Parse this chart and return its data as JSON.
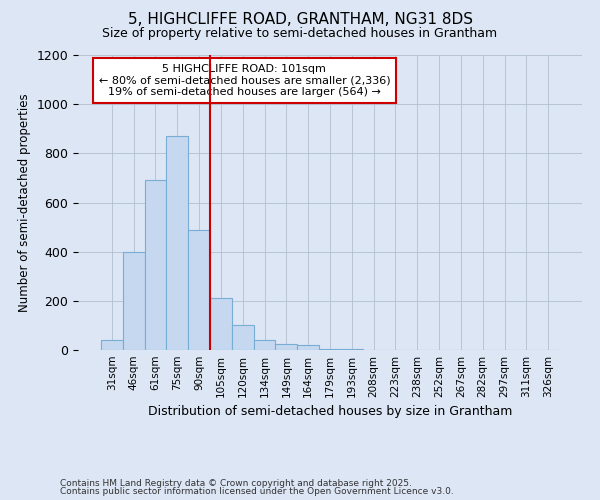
{
  "title1": "5, HIGHCLIFFE ROAD, GRANTHAM, NG31 8DS",
  "title2": "Size of property relative to semi-detached houses in Grantham",
  "xlabel": "Distribution of semi-detached houses by size in Grantham",
  "ylabel": "Number of semi-detached properties",
  "categories": [
    "31sqm",
    "46sqm",
    "61sqm",
    "75sqm",
    "90sqm",
    "105sqm",
    "120sqm",
    "134sqm",
    "149sqm",
    "164sqm",
    "179sqm",
    "193sqm",
    "208sqm",
    "223sqm",
    "238sqm",
    "252sqm",
    "267sqm",
    "282sqm",
    "297sqm",
    "311sqm",
    "326sqm"
  ],
  "values": [
    40,
    400,
    690,
    870,
    490,
    210,
    100,
    40,
    25,
    20,
    5,
    3,
    2,
    0,
    0,
    0,
    0,
    0,
    0,
    0,
    2
  ],
  "bar_color": "#c5d8f0",
  "bar_edge_color": "#7aadd4",
  "vline_x_idx": 4,
  "vline_color": "#cc0000",
  "annotation_title": "5 HIGHCLIFFE ROAD: 101sqm",
  "annotation_line1": "← 80% of semi-detached houses are smaller (2,336)",
  "annotation_line2": "19% of semi-detached houses are larger (564) →",
  "annotation_box_color": "#cc0000",
  "ylim": [
    0,
    1200
  ],
  "yticks": [
    0,
    200,
    400,
    600,
    800,
    1000,
    1200
  ],
  "footnote1": "Contains HM Land Registry data © Crown copyright and database right 2025.",
  "footnote2": "Contains public sector information licensed under the Open Government Licence v3.0.",
  "bg_color": "#dce6f5",
  "plot_bg_color": "#dce6f5"
}
